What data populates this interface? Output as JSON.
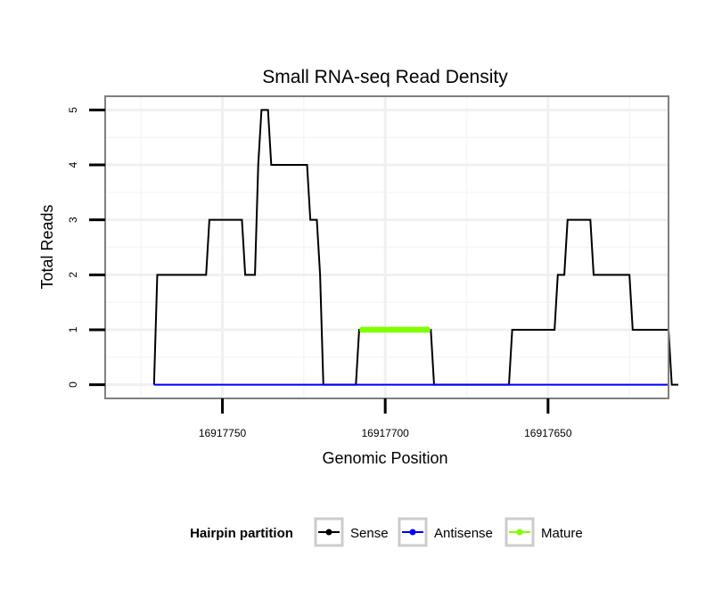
{
  "chart_data": {
    "type": "line",
    "title": "Small RNA-seq Read Density",
    "xlabel": "Genomic Position",
    "ylabel": "Total Reads",
    "x_reversed": true,
    "xlim": [
      16917786,
      16917613
    ],
    "ylim": [
      -0.25,
      5.25
    ],
    "x_ticks": [
      16917750,
      16917700,
      16917650
    ],
    "x_tick_labels": [
      "16917750",
      "16917700",
      "16917650"
    ],
    "y_ticks": [
      0,
      1,
      2,
      3,
      4,
      5
    ],
    "y_tick_labels": [
      "0",
      "1",
      "2",
      "3",
      "4",
      "5"
    ],
    "grid": true,
    "legend": {
      "title": "Hairpin partition",
      "position": "bottom",
      "entries": [
        {
          "name": "Sense",
          "color": "#000000"
        },
        {
          "name": "Antisense",
          "color": "#0000ff"
        },
        {
          "name": "Mature",
          "color": "#7fff00"
        }
      ]
    },
    "series": [
      {
        "name": "Sense",
        "color": "#000000",
        "x": [
          16917771,
          16917770,
          16917769,
          16917755,
          16917754,
          16917744,
          16917743,
          16917741,
          16917740,
          16917739,
          16917738,
          16917736,
          16917735,
          16917734,
          16917733,
          16917724,
          16917723,
          16917721,
          16917720,
          16917719,
          16917718,
          16917709,
          16917708,
          16917686,
          16917685,
          16917662,
          16917661,
          16917648,
          16917647,
          16917645,
          16917644,
          16917637,
          16917636,
          16917625,
          16917624,
          16917613,
          16917612,
          16917610
        ],
        "y": [
          0,
          2,
          2,
          2,
          3,
          3,
          2,
          2,
          2,
          4,
          5,
          5,
          4,
          4,
          4,
          4,
          3,
          3,
          2,
          0,
          0,
          0,
          1,
          1,
          0,
          0,
          1,
          1,
          2,
          2,
          3,
          3,
          2,
          2,
          1,
          1,
          0,
          0
        ]
      },
      {
        "name": "Antisense",
        "color": "#0000ff",
        "x": [
          16917771,
          16917613
        ],
        "y": [
          0,
          0
        ]
      },
      {
        "name": "Mature",
        "color": "#7fff00",
        "x": [
          16917707,
          16917706,
          16917705,
          16917704,
          16917703,
          16917702,
          16917701,
          16917700,
          16917699,
          16917698,
          16917697,
          16917696,
          16917695,
          16917694,
          16917693,
          16917692,
          16917691,
          16917690,
          16917689,
          16917688,
          16917687
        ],
        "y": [
          1,
          1,
          1,
          1,
          1,
          1,
          1,
          1,
          1,
          1,
          1,
          1,
          1,
          1,
          1,
          1,
          1,
          1,
          1,
          1,
          1
        ]
      }
    ]
  }
}
